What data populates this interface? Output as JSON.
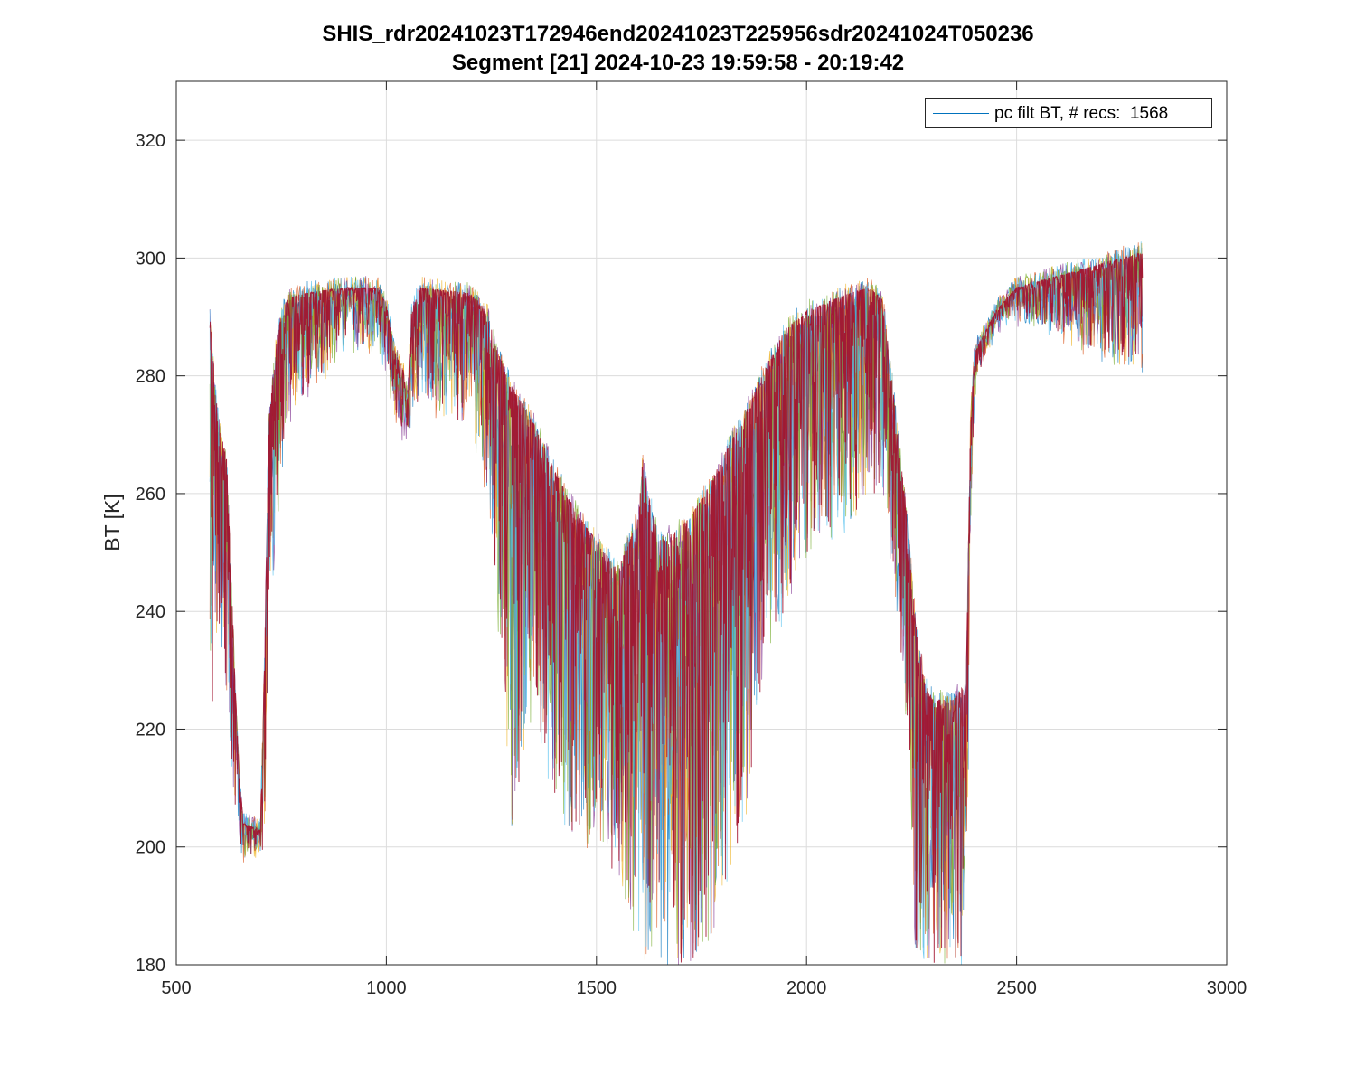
{
  "chart_data": {
    "type": "line",
    "title": "SHIS_rdr20241023T172946end20241023T225956sdr20241024T050236",
    "subtitle": "Segment [21] 2024-10-23 19:59:58 - 20:19:42",
    "xlabel": "",
    "ylabel": "BT [K]",
    "xlim": [
      500,
      3000
    ],
    "ylim": [
      180,
      330
    ],
    "xticks": [
      500,
      1000,
      1500,
      2000,
      2500,
      3000
    ],
    "yticks": [
      180,
      200,
      220,
      240,
      260,
      280,
      300,
      320
    ],
    "grid": true,
    "legend": {
      "placement": "top-right",
      "entries": [
        "pc filt BT, # recs:  1568"
      ]
    },
    "series_colors": [
      "#0072BD",
      "#D95319",
      "#EDB120",
      "#7E2F8E",
      "#77AC30",
      "#4DBEEE",
      "#A2142F"
    ],
    "legend_color": "#0072BD",
    "envelope": {
      "x": [
        580,
        600,
        620,
        640,
        650,
        660,
        700,
        710,
        720,
        740,
        760,
        800,
        900,
        980,
        1000,
        1020,
        1040,
        1050,
        1060,
        1080,
        1200,
        1240,
        1260,
        1300,
        1350,
        1400,
        1450,
        1500,
        1550,
        1600,
        1610,
        1620,
        1650,
        1700,
        1750,
        1800,
        1850,
        1900,
        1950,
        2000,
        2100,
        2150,
        2180,
        2200,
        2220,
        2240,
        2260,
        2280,
        2300,
        2350,
        2380,
        2390,
        2400,
        2450,
        2500,
        2550,
        2600,
        2700,
        2800
      ],
      "upper": [
        290,
        272,
        266,
        228,
        212,
        204,
        203,
        232,
        272,
        287,
        293,
        294,
        295,
        295,
        292,
        284,
        281,
        276,
        291,
        295,
        294,
        291,
        285,
        278,
        272,
        264,
        257,
        252,
        247,
        256,
        266,
        261,
        252,
        254,
        259,
        266,
        273,
        281,
        288,
        291,
        294,
        295,
        293,
        282,
        268,
        256,
        238,
        228,
        225,
        225,
        228,
        272,
        284,
        291,
        295,
        296,
        297,
        299,
        301
      ],
      "lower": [
        215,
        236,
        226,
        206,
        200,
        198,
        198,
        200,
        235,
        256,
        270,
        276,
        285,
        285,
        281,
        272,
        270,
        270,
        272,
        276,
        271,
        260,
        245,
        200,
        225,
        205,
        200,
        200,
        195,
        180,
        180,
        180,
        180,
        180,
        180,
        190,
        200,
        230,
        240,
        250,
        255,
        260,
        260,
        250,
        235,
        220,
        180,
        180,
        180,
        180,
        180,
        250,
        278,
        289,
        290,
        289,
        287,
        284,
        282
      ]
    }
  }
}
